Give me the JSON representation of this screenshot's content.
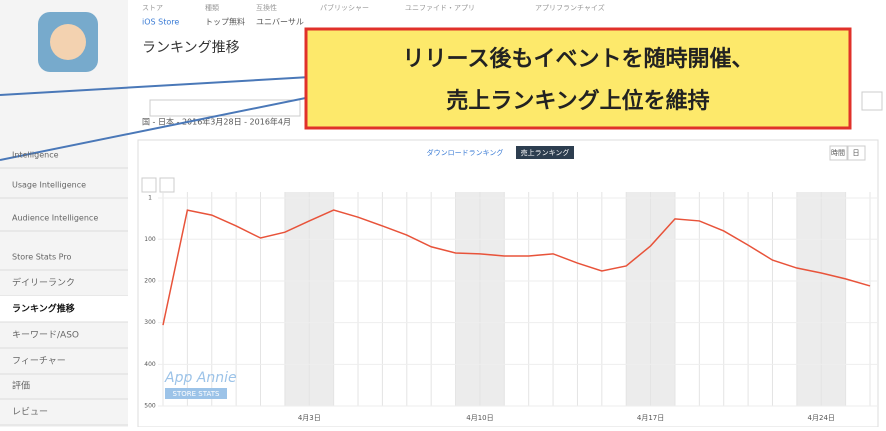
{
  "header": {
    "labels": [
      "ストア",
      "種類",
      "互換性",
      "パブリッシャー",
      "ユニファイド・アプリ",
      "アプリフランチャイズ"
    ],
    "values": [
      "iOS Store",
      "トップ無料",
      "ユニバーサル"
    ],
    "title": "ランキング推移",
    "filter": "国 - 日本 - 2016年3月28日 - 2016年4月"
  },
  "sidebar": [
    "Intelligence",
    "Usage Intelligence",
    "Audience Intelligence",
    "Store Stats Pro",
    "デイリーランク",
    "ランキング推移",
    "キーワード/ASO",
    "フィーチャー",
    "評価",
    "レビュー"
  ],
  "tabs": [
    "ダウンロードランキング",
    "売上ランキング"
  ],
  "time_buttons": [
    "時間",
    "日"
  ],
  "watermark": [
    "App Annie",
    "STORE STATS"
  ],
  "callout": [
    "リリース後もイベントを随時開催、",
    "売上ランキング上位を維持"
  ],
  "chart_data": {
    "type": "line",
    "categories": [
      null,
      null,
      null,
      null,
      null,
      null,
      "4月3日",
      null,
      null,
      null,
      null,
      null,
      null,
      "4月10日",
      null,
      null,
      null,
      null,
      null,
      null,
      "4月17日",
      null,
      null,
      null,
      null,
      null,
      null,
      "4月24日",
      null,
      null
    ],
    "series": [
      {
        "color": "#e8533a",
        "values": [
          306,
          30,
          42,
          68,
          97,
          83,
          56,
          30,
          47,
          68,
          90,
          118,
          133,
          135,
          140,
          140,
          135,
          157,
          176,
          164,
          116,
          51,
          56,
          80,
          114,
          150,
          169,
          181,
          195,
          212
        ]
      }
    ],
    "ylim": [
      500,
      1
    ],
    "yticks": [
      1,
      100,
      200,
      300,
      400,
      500
    ],
    "grid": true
  }
}
